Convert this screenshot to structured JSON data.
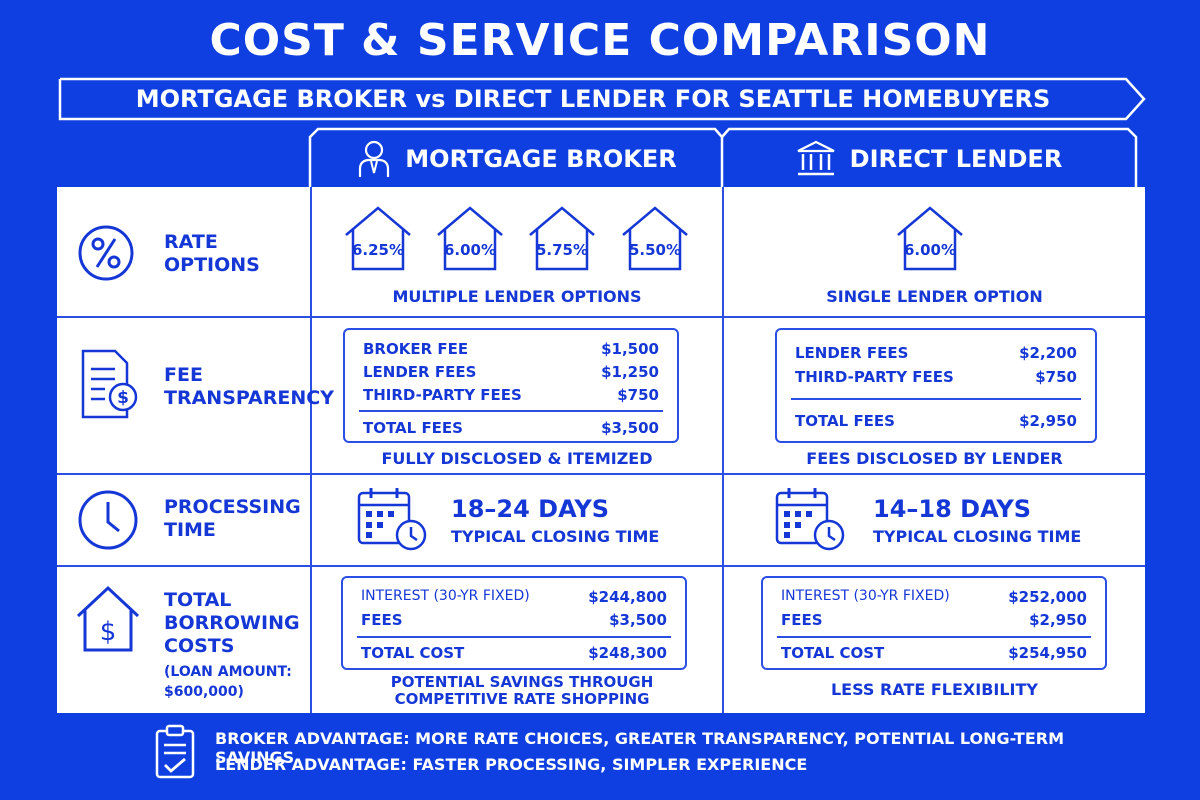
{
  "header": {
    "title": "COST & SERVICE COMPARISON",
    "subtitle": "MORTGAGE BROKER vs DIRECT LENDER FOR SEATTLE HOMEBUYERS"
  },
  "columns": {
    "broker": {
      "label": "MORTGAGE BROKER",
      "icon": "person-icon"
    },
    "lender": {
      "label": "DIRECT LENDER",
      "icon": "bank-icon"
    }
  },
  "rows": {
    "rate": {
      "label_1": "RATE",
      "label_2": "OPTIONS",
      "icon": "percent-icon",
      "broker_rates": [
        "6.25%",
        "6.00%",
        "5.75%",
        "5.50%"
      ],
      "broker_caption": "MULTIPLE LENDER OPTIONS",
      "lender_rate": "6.00%",
      "lender_caption": "SINGLE LENDER OPTION"
    },
    "fee": {
      "label_1": "FEE",
      "label_2": "TRANSPARENCY",
      "icon": "document-dollar-icon",
      "broker_items": [
        {
          "name": "BROKER FEE",
          "amount": "$1,500"
        },
        {
          "name": "LENDER FEES",
          "amount": "$1,250"
        },
        {
          "name": "THIRD-PARTY FEES",
          "amount": "$750"
        }
      ],
      "broker_total": {
        "name": "TOTAL FEES",
        "amount": "$3,500"
      },
      "broker_caption": "FULLY DISCLOSED & ITEMIZED",
      "lender_items": [
        {
          "name": "LENDER FEES",
          "amount": "$2,200"
        },
        {
          "name": "THIRD-PARTY FEES",
          "amount": "$750"
        }
      ],
      "lender_total": {
        "name": "TOTAL FEES",
        "amount": "$2,950"
      },
      "lender_caption": "FEES DISCLOSED BY LENDER"
    },
    "processing": {
      "label_1": "PROCESSING",
      "label_2": "TIME",
      "icon": "clock-icon",
      "broker_days": "18–24 DAYS",
      "broker_sub": "TYPICAL CLOSING TIME",
      "lender_days": "14–18 DAYS",
      "lender_sub": "TYPICAL CLOSING TIME"
    },
    "total": {
      "label_1": "TOTAL",
      "label_2": "BORROWING",
      "label_3": "COSTS",
      "label_4": "(LOAN AMOUNT:",
      "label_5": "$600,000)",
      "icon": "house-dollar-icon",
      "broker_items": [
        {
          "name": "INTEREST (30-YR FIXED)",
          "amount": "$244,800"
        },
        {
          "name": "FEES",
          "amount": "$3,500"
        }
      ],
      "broker_total": {
        "name": "TOTAL COST",
        "amount": "$248,300"
      },
      "broker_caption_1": "POTENTIAL SAVINGS THROUGH",
      "broker_caption_2": "COMPETITIVE RATE SHOPPING",
      "lender_items": [
        {
          "name": "INTEREST (30-YR FIXED)",
          "amount": "$252,000"
        },
        {
          "name": "FEES",
          "amount": "$2,950"
        }
      ],
      "lender_total": {
        "name": "TOTAL COST",
        "amount": "$254,950"
      },
      "lender_caption": "LESS RATE FLEXIBILITY"
    }
  },
  "footer": {
    "icon": "clipboard-check-icon",
    "line_1": "BROKER ADVANTAGE: MORE RATE CHOICES, GREATER TRANSPARENCY, POTENTIAL LONG-TERM SAVINGS",
    "line_2": "LENDER ADVANTAGE: FASTER PROCESSING, SIMPLER EXPERIENCE"
  },
  "colors": {
    "background": "#0f3fe0",
    "text": "#1437d6",
    "panel": "#ffffff"
  }
}
